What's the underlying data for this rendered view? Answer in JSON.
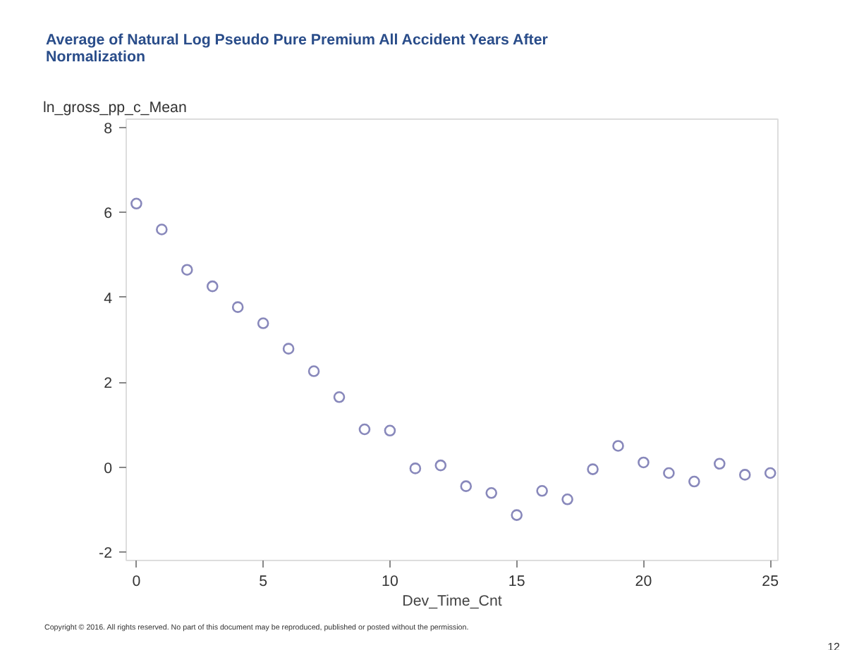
{
  "chart_data": {
    "type": "scatter",
    "title": "Average of Natural Log Pseudo Pure Premium All Accident Years After Normalization",
    "xlabel": "Dev_Time_Cnt",
    "ylabel": "ln_gross_pp_c_Mean",
    "x": [
      0,
      1,
      2,
      3,
      4,
      5,
      6,
      7,
      8,
      9,
      10,
      11,
      12,
      13,
      14,
      15,
      16,
      17,
      18,
      19,
      20,
      21,
      22,
      23,
      24,
      25
    ],
    "series": [
      {
        "color": "#8888bb",
        "values": [
          6.21,
          5.6,
          4.65,
          4.26,
          3.77,
          3.39,
          2.79,
          2.26,
          1.65,
          0.89,
          0.86,
          -0.03,
          0.04,
          -0.45,
          -0.61,
          -1.13,
          -0.56,
          -0.76,
          -0.05,
          0.5,
          0.11,
          -0.14,
          -0.34,
          0.08,
          -0.18,
          -0.14
        ]
      }
    ],
    "marker": "circle",
    "grid": false,
    "xlim": [
      -0.4,
      25.3
    ],
    "ylim": [
      -2.2,
      8.2
    ],
    "xticks": [
      0,
      5,
      10,
      15,
      20,
      25
    ],
    "yticks": [
      -2,
      0,
      2,
      4,
      6,
      8
    ],
    "annotations": [
      "Copyright © 2016. All rights reserved. No part of this document may be reproduced, published or posted without the permission.",
      "12"
    ]
  }
}
